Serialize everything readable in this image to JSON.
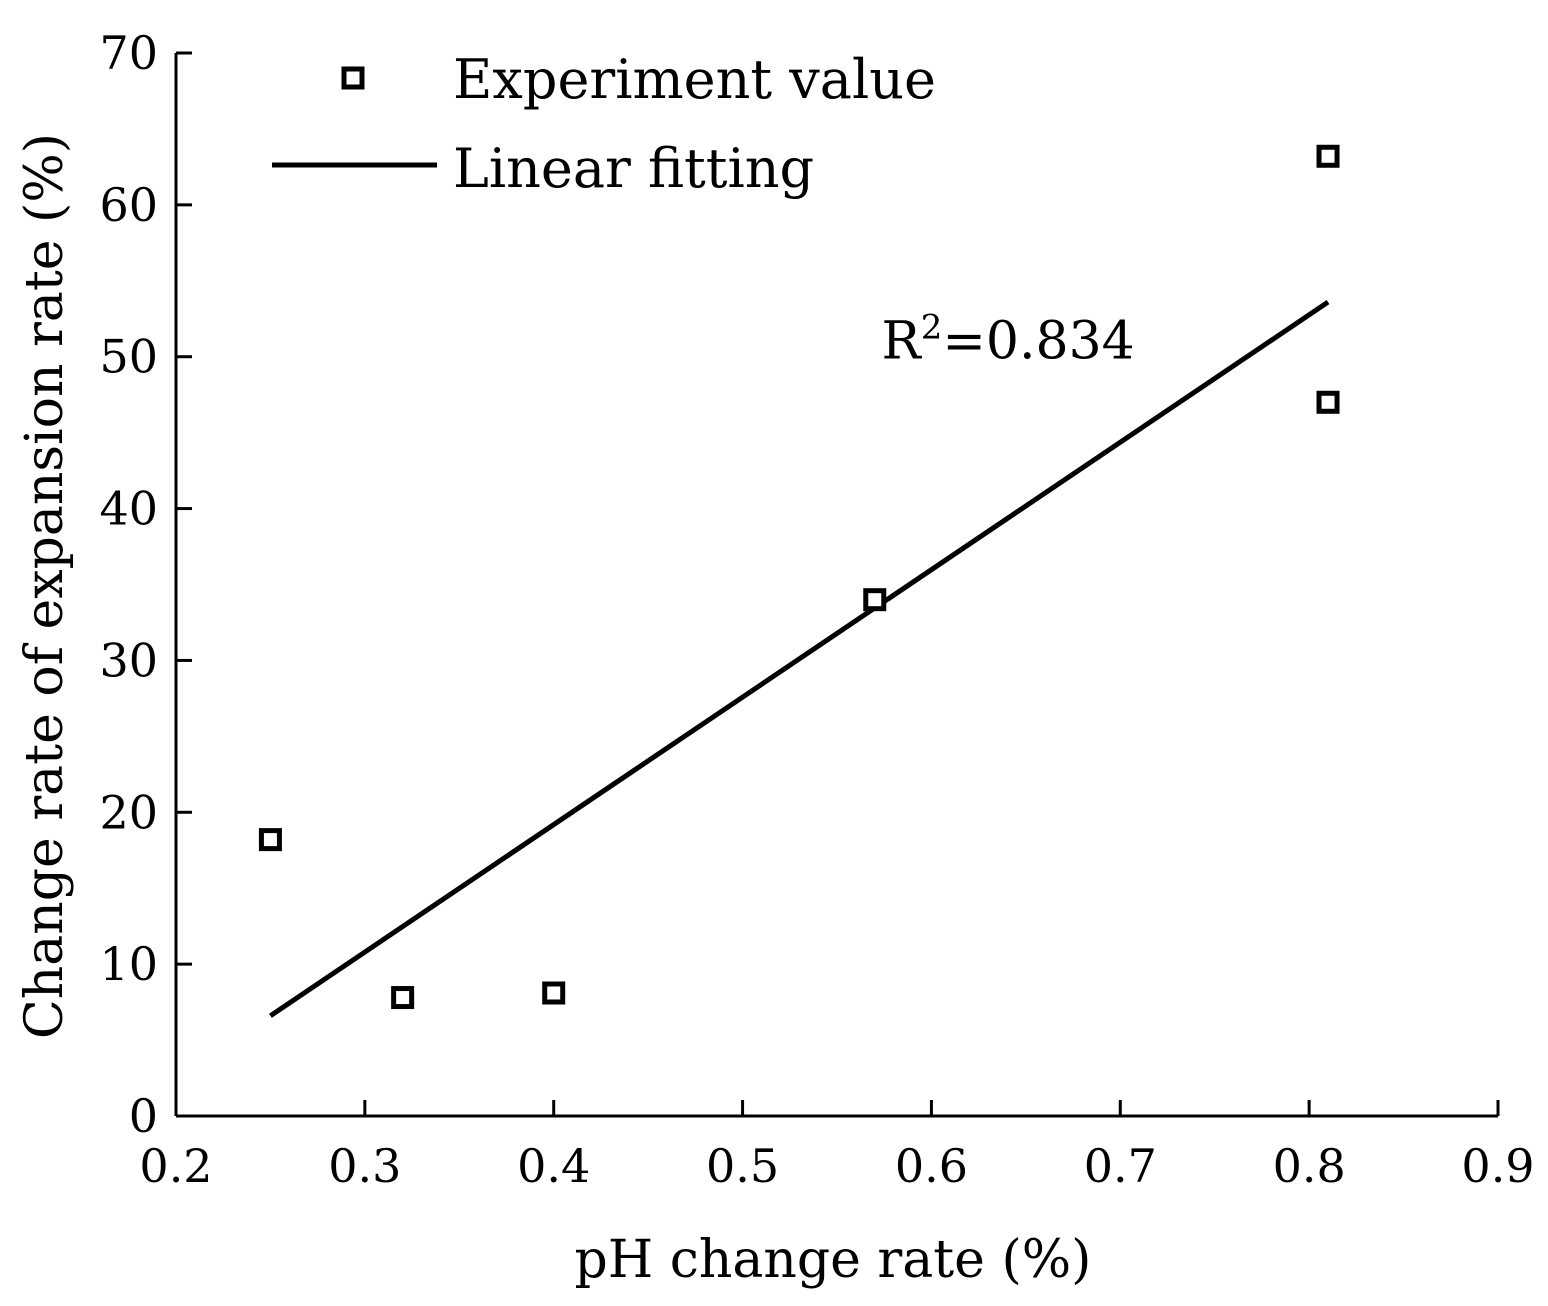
{
  "chart_data": {
    "type": "scatter",
    "xlabel": "pH change rate (%)",
    "ylabel": "Change rate of expansion rate (%)",
    "xlim": [
      0.2,
      0.9
    ],
    "ylim": [
      0,
      70
    ],
    "xticks": [
      "0.2",
      "0.3",
      "0.4",
      "0.5",
      "0.6",
      "0.7",
      "0.8",
      "0.9"
    ],
    "yticks": [
      "0",
      "10",
      "20",
      "30",
      "40",
      "50",
      "60",
      "70"
    ],
    "grid": false,
    "legend_position": "top-left",
    "series": [
      {
        "name": "Experiment value",
        "kind": "scatter",
        "marker": "square",
        "x": [
          0.25,
          0.32,
          0.4,
          0.57,
          0.81,
          0.81
        ],
        "y": [
          18.2,
          7.8,
          8.1,
          34.0,
          63.2,
          47.0
        ]
      },
      {
        "name": "Linear fitting",
        "kind": "line",
        "x": [
          0.25,
          0.81
        ],
        "y": [
          6.6,
          53.6
        ]
      }
    ],
    "annotation": {
      "base": "R",
      "sup": "2",
      "rest": "=0.834",
      "at": [
        0.59,
        50
      ]
    }
  }
}
